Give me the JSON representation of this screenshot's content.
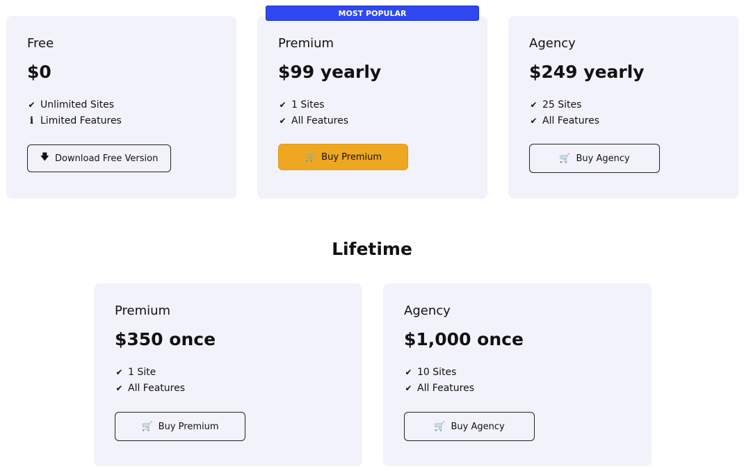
{
  "badge": "MOST POPULAR",
  "yearly": [
    {
      "title": "Free",
      "price": "$0",
      "features": [
        {
          "icon": "check-icon",
          "text": "Unlimited Sites"
        },
        {
          "icon": "info-icon",
          "text": "Limited Features"
        }
      ],
      "button": {
        "label": "Download Free Version",
        "icon": "file-download-icon"
      }
    },
    {
      "title": "Premium",
      "price": "$99 yearly",
      "features": [
        {
          "icon": "check-icon",
          "text": "1 Sites"
        },
        {
          "icon": "check-icon",
          "text": "All Features"
        }
      ],
      "button": {
        "label": "Buy Premium",
        "icon": "cart-icon"
      }
    },
    {
      "title": "Agency",
      "price": "$249 yearly",
      "features": [
        {
          "icon": "check-icon",
          "text": "25 Sites"
        },
        {
          "icon": "check-icon",
          "text": "All Features"
        }
      ],
      "button": {
        "label": "Buy Agency",
        "icon": "cart-icon"
      }
    }
  ],
  "lifetime_title": "Lifetime",
  "lifetime": [
    {
      "title": "Premium",
      "price": "$350 once",
      "features": [
        {
          "icon": "check-icon",
          "text": "1 Site"
        },
        {
          "icon": "check-icon",
          "text": "All Features"
        }
      ],
      "button": {
        "label": "Buy Premium",
        "icon": "cart-icon"
      }
    },
    {
      "title": "Agency",
      "price": "$1,000 once",
      "features": [
        {
          "icon": "check-icon",
          "text": "10 Sites"
        },
        {
          "icon": "check-icon",
          "text": "All Features"
        }
      ],
      "button": {
        "label": "Buy Agency",
        "icon": "cart-icon"
      }
    }
  ],
  "colors": {
    "card_bg": "#f2f2fb",
    "badge": "#2f48f0",
    "primary_button": "#eea720"
  }
}
